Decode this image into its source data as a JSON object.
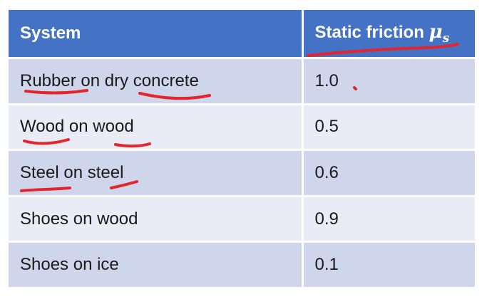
{
  "table": {
    "headers": {
      "system": "System",
      "friction_prefix": "Static friction ",
      "mu_symbol": "μ",
      "mu_subscript": "s"
    },
    "rows": [
      {
        "system": "Rubber on dry concrete",
        "value": "1.0"
      },
      {
        "system": "Wood on wood",
        "value": "0.5"
      },
      {
        "system": "Steel on steel",
        "value": "0.6"
      },
      {
        "system": "Shoes on wood",
        "value": "0.9"
      },
      {
        "system": "Shoes on ice",
        "value": "0.1"
      }
    ]
  },
  "colors": {
    "header_bg": "#4472c4",
    "row_dark": "#cfd5ea",
    "row_light": "#e9ebf5",
    "annotation_ink": "#e3262c"
  }
}
